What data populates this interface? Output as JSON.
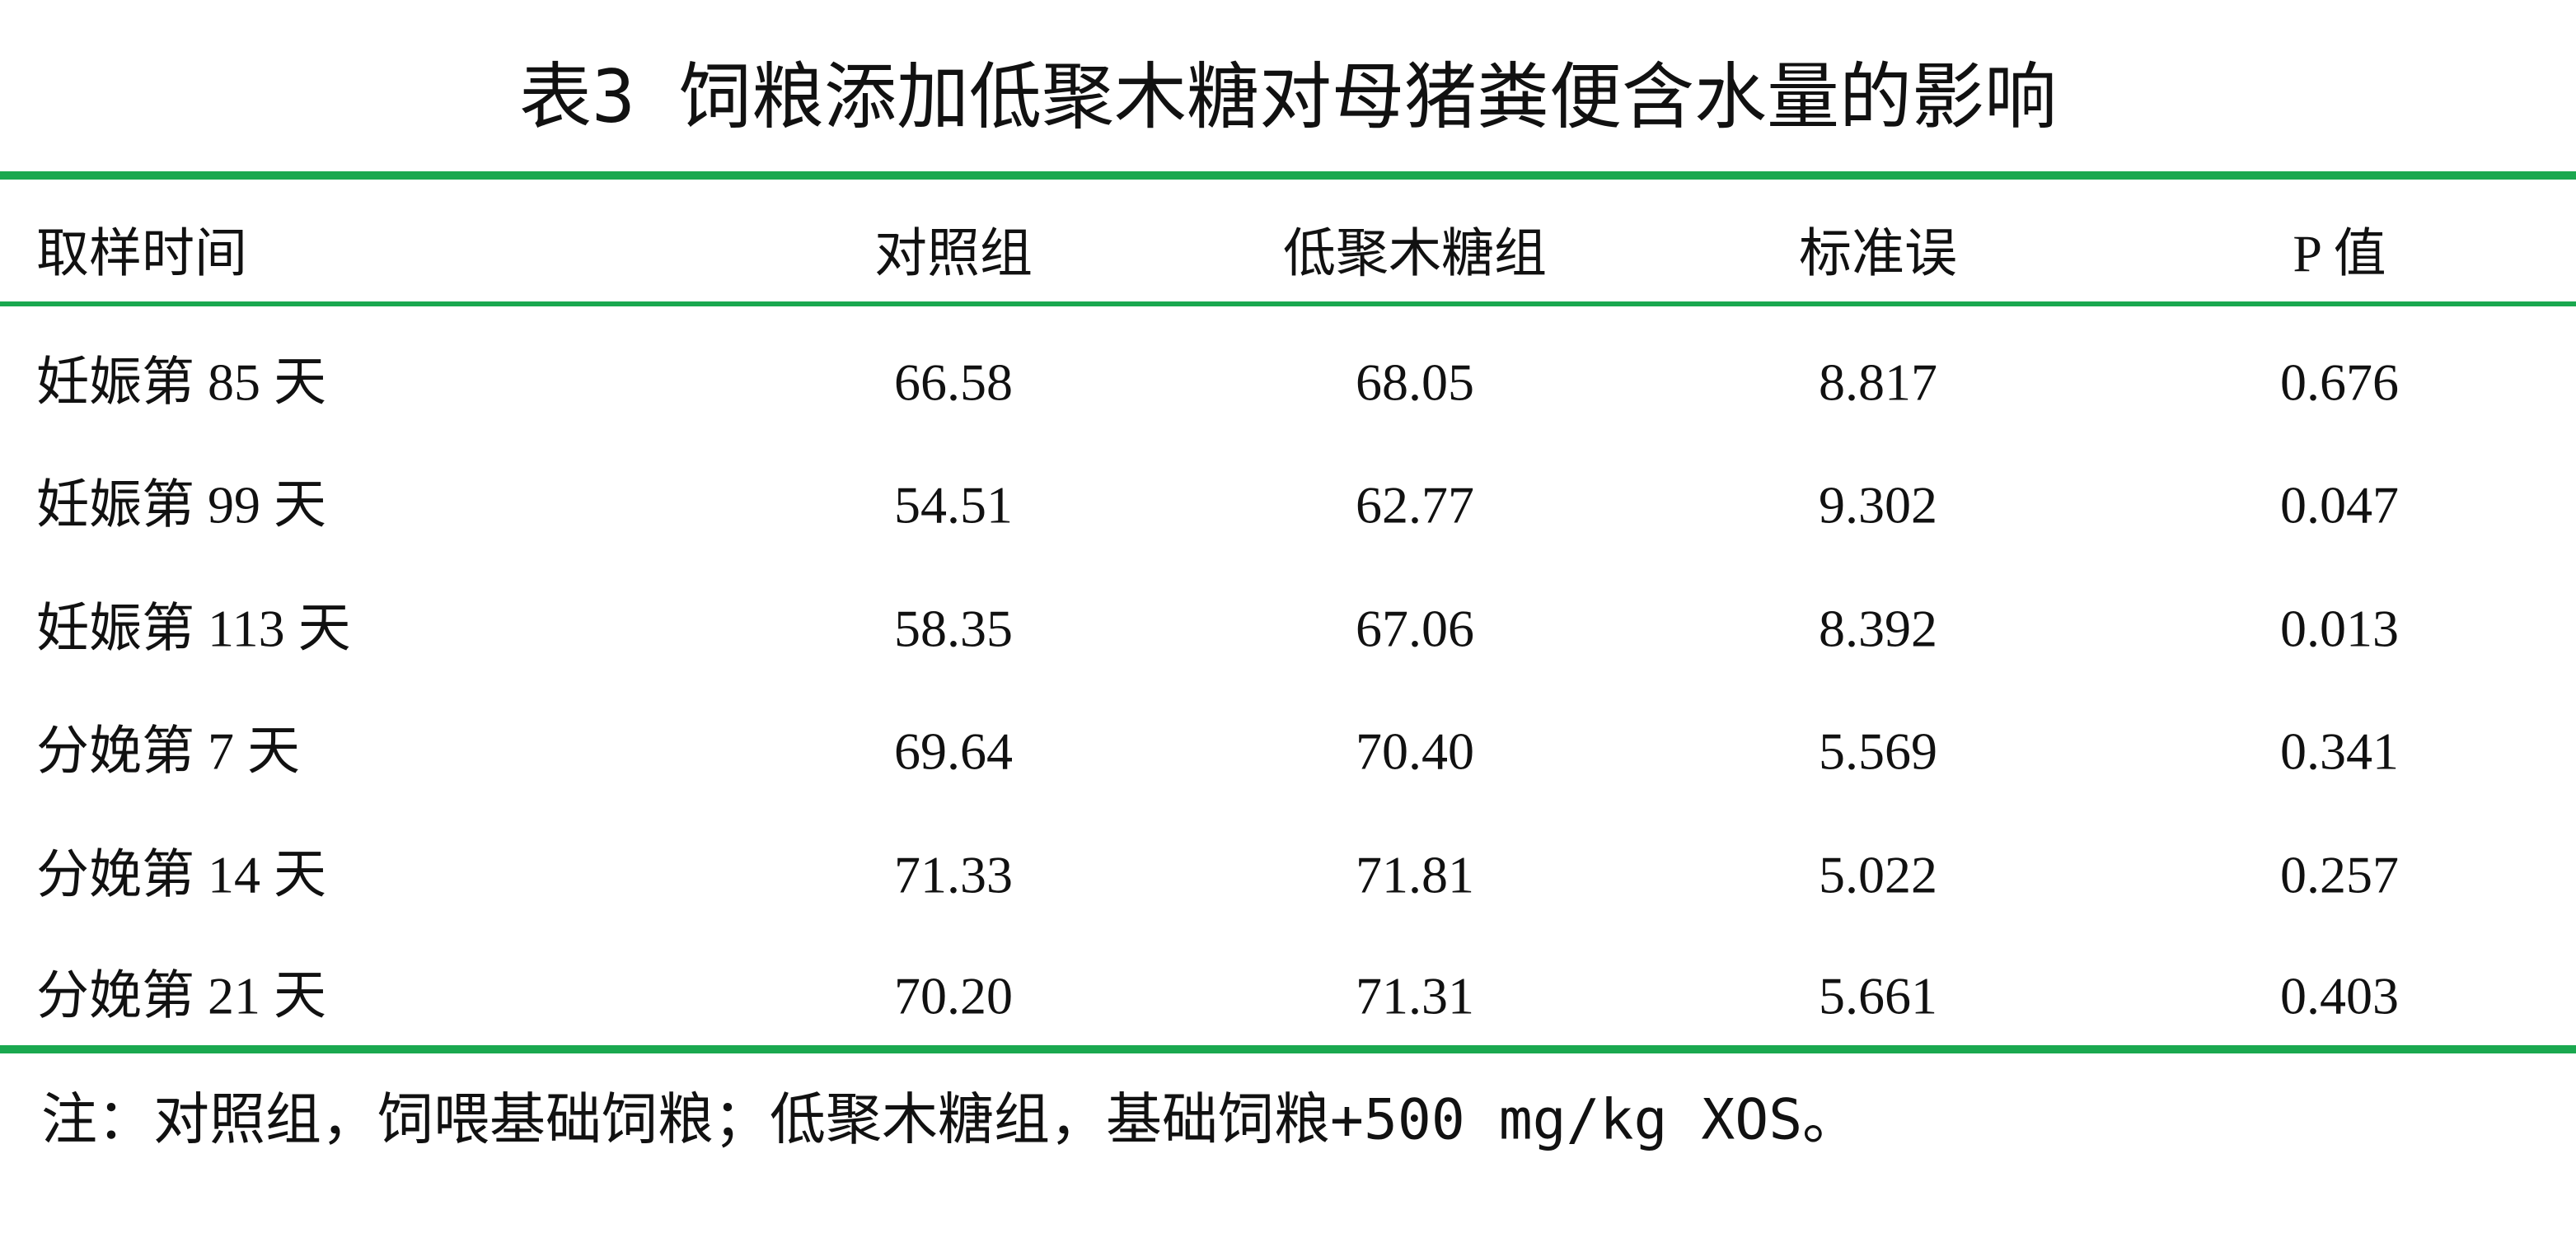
{
  "title": "表3 饲粮添加低聚木糖对母猪粪便含水量的影响",
  "table": {
    "headers": [
      "取样时间",
      "对照组",
      "低聚木糖组",
      "标准误",
      "P 值"
    ],
    "rows": [
      [
        "妊娠第 85 天",
        "66.58",
        "68.05",
        "8.817",
        "0.676"
      ],
      [
        "妊娠第 99 天",
        "54.51",
        "62.77",
        "9.302",
        "0.047"
      ],
      [
        "妊娠第 113 天",
        "58.35",
        "67.06",
        "8.392",
        "0.013"
      ],
      [
        "分娩第 7 天",
        "69.64",
        "70.40",
        "5.569",
        "0.341"
      ],
      [
        "分娩第 14 天",
        "71.33",
        "71.81",
        "5.022",
        "0.257"
      ],
      [
        "分娩第 21 天",
        "70.20",
        "71.31",
        "5.661",
        "0.403"
      ]
    ]
  },
  "note": "注：对照组，饲喂基础饲粮；低聚木糖组，基础饲粮+500 mg/kg XOS。"
}
